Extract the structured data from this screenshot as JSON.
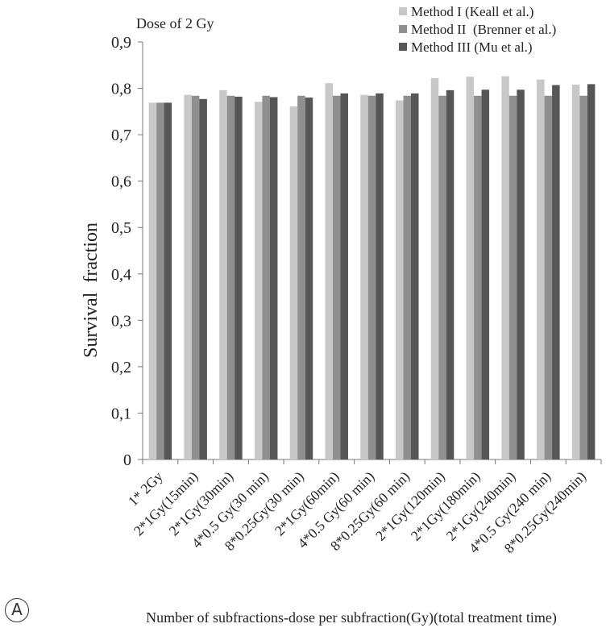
{
  "panel_label": "A",
  "chart_data": {
    "type": "bar",
    "title": "Dose of 2 Gy",
    "xlabel": "Number of subfractions-dose per subfraction(Gy)(total treatment time)",
    "ylabel": "Survival  fraction",
    "ylim": [
      0,
      0.9
    ],
    "yticks": [
      "0",
      "0,1",
      "0,2",
      "0,3",
      "0,4",
      "0,5",
      "0,6",
      "0,7",
      "0,8",
      "0,9"
    ],
    "legend_position": "top-right",
    "grid": false,
    "categories": [
      "1* 2Gy",
      "2*1Gy(15min)",
      "2*1Gy(30min)",
      "4*0.5 Gy(30 min)",
      "8*0.25Gy(30 min)",
      "2*1Gy(60min)",
      "4*0.5 Gy(60 min)",
      "8*0.25Gy(60 min)",
      "2*1Gy(120min)",
      "2*1Gy(180min)",
      "2*1Gy(240min)",
      "4*0.5 Gy(240 min)",
      "8*0.25Gy(240min)"
    ],
    "series": [
      {
        "name": "Method I (Keall et al.)",
        "color": "#c8c8c8",
        "values": [
          0.769,
          0.786,
          0.796,
          0.771,
          0.761,
          0.811,
          0.786,
          0.774,
          0.822,
          0.825,
          0.826,
          0.819,
          0.808
        ]
      },
      {
        "name": "Method II  (Brenner et al.)",
        "color": "#8f8f8f",
        "values": [
          0.769,
          0.784,
          0.784,
          0.784,
          0.784,
          0.784,
          0.784,
          0.784,
          0.784,
          0.784,
          0.784,
          0.784,
          0.784
        ]
      },
      {
        "name": "Method III (Mu et al.)",
        "color": "#565656",
        "values": [
          0.769,
          0.777,
          0.782,
          0.781,
          0.78,
          0.789,
          0.789,
          0.789,
          0.796,
          0.797,
          0.797,
          0.807,
          0.809
        ]
      }
    ]
  }
}
